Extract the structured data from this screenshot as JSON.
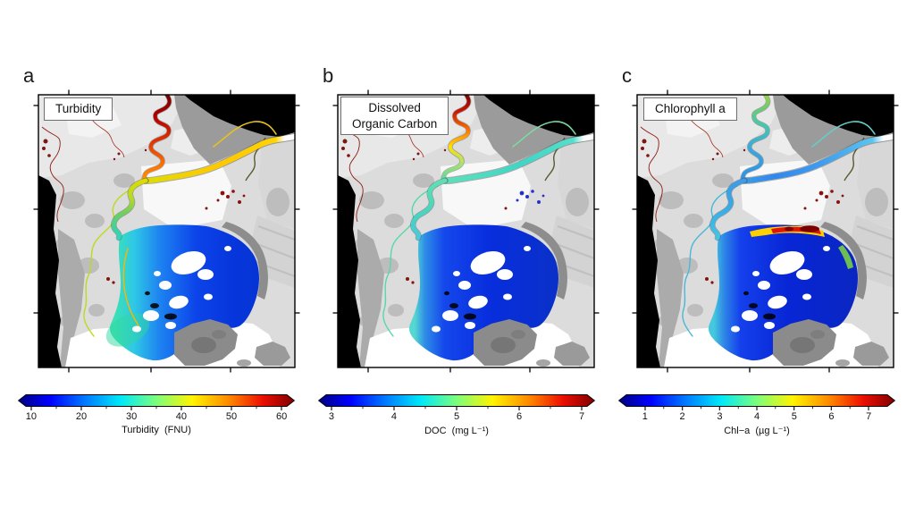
{
  "panels": [
    {
      "letter": "a",
      "title_lines": [
        "Turbidity"
      ],
      "colors": {
        "river_upper": [
          [
            "0",
            "#6e0000"
          ],
          [
            "0.28",
            "#b00000"
          ],
          [
            "0.55",
            "#e03000"
          ],
          [
            "0.8",
            "#ff6a00"
          ],
          [
            "1",
            "#ff9400"
          ]
        ],
        "river_east": [
          [
            "0",
            "#ffffff"
          ],
          [
            "0.09",
            "#ffffff"
          ],
          [
            "0.15",
            "#ffd400"
          ],
          [
            "0.5",
            "#ffc800"
          ],
          [
            "0.8",
            "#eed400"
          ],
          [
            "1",
            "#dcdc00"
          ]
        ],
        "river_lower": [
          [
            "0",
            "#dcdc00"
          ],
          [
            "0.3",
            "#b4da28"
          ],
          [
            "0.55",
            "#6ed05a"
          ],
          [
            "0.8",
            "#3ed29e"
          ],
          [
            "1",
            "#30d4c4"
          ]
        ],
        "bay": [
          [
            "0",
            "#3ce0b4"
          ],
          [
            "0.13",
            "#2ec8e6"
          ],
          [
            "0.3",
            "#1e84f0"
          ],
          [
            "0.55",
            "#0c44ea"
          ],
          [
            "0.8",
            "#0636dc"
          ],
          [
            "1",
            "#0534d4"
          ]
        ],
        "branch": "#c0d820",
        "east_thin": "#e8c020",
        "ponds": "#8b1010",
        "shore_rim": "#ffb400",
        "sw_fan": "#2fd8a0"
      }
    },
    {
      "letter": "b",
      "title_lines": [
        "Dissolved",
        "Organic Carbon"
      ],
      "colors": {
        "river_upper": [
          [
            "0",
            "#700000"
          ],
          [
            "0.22",
            "#c81400"
          ],
          [
            "0.45",
            "#ff7a00"
          ],
          [
            "0.62",
            "#ffe000"
          ],
          [
            "0.8",
            "#b0e465"
          ],
          [
            "1",
            "#52d8a8"
          ]
        ],
        "river_east": [
          [
            "0",
            "#ffffff"
          ],
          [
            "0.09",
            "#ffffff"
          ],
          [
            "0.16",
            "#52e0cc"
          ],
          [
            "0.5",
            "#3ed6c6"
          ],
          [
            "0.8",
            "#52dcc0"
          ],
          [
            "1",
            "#5ee0b6"
          ]
        ],
        "river_lower": [
          [
            "0",
            "#5ee0b6"
          ],
          [
            "0.4",
            "#4cd8b8"
          ],
          [
            "0.7",
            "#46d0cc"
          ],
          [
            "1",
            "#4ec8dc"
          ]
        ],
        "bay": [
          [
            "0",
            "#55d8d2"
          ],
          [
            "0.07",
            "#2e8ee6"
          ],
          [
            "0.2",
            "#1548ec"
          ],
          [
            "0.5",
            "#082ede"
          ],
          [
            "1",
            "#0a30c8"
          ]
        ],
        "branch": "#58d8a8",
        "east_thin": "#7cd8a0",
        "ponds": "#2830cc"
      }
    },
    {
      "letter": "c",
      "title_lines": [
        "Chlorophyll a"
      ],
      "colors": {
        "river_upper": [
          [
            "0",
            "#a2d833"
          ],
          [
            "0.18",
            "#6ecc6e"
          ],
          [
            "0.4",
            "#40c8b4"
          ],
          [
            "0.65",
            "#38a8e0"
          ],
          [
            "1",
            "#3090e4"
          ]
        ],
        "river_east": [
          [
            "0",
            "#ffffff"
          ],
          [
            "0.09",
            "#ffffff"
          ],
          [
            "0.16",
            "#5ac4f0"
          ],
          [
            "0.5",
            "#3e9cf0"
          ],
          [
            "0.8",
            "#3088ee"
          ],
          [
            "1",
            "#3c9ce8"
          ]
        ],
        "river_lower": [
          [
            "0",
            "#3c9ce8"
          ],
          [
            "0.4",
            "#38a8e6"
          ],
          [
            "0.7",
            "#3eb6e6"
          ],
          [
            "1",
            "#46c6e4"
          ]
        ],
        "bay": [
          [
            "0",
            "#44c8de"
          ],
          [
            "0.07",
            "#2e86e6"
          ],
          [
            "0.18",
            "#1440ec"
          ],
          [
            "0.5",
            "#0826d6"
          ],
          [
            "1",
            "#0a26c0"
          ]
        ],
        "branch": "#48b8d8",
        "east_thin": "#66ccc8",
        "ponds": "#8b1010",
        "bloom_band": "#ffd000",
        "bloom_red": "#e01500",
        "bloom_core": "#7a0000",
        "edge_green": "#7fd840"
      }
    }
  ],
  "colorbars": [
    {
      "ticks": [
        "10",
        "20",
        "30",
        "40",
        "50",
        "60"
      ],
      "unit_label": "Turbidity  (FNU)",
      "range": [
        10,
        60
      ]
    },
    {
      "ticks": [
        "3",
        "4",
        "5",
        "6",
        "7"
      ],
      "unit_label": "DOC  (mg L⁻¹)",
      "range": [
        3,
        7
      ]
    },
    {
      "ticks": [
        "1",
        "2",
        "3",
        "4",
        "5",
        "6",
        "7"
      ],
      "unit_label": "Chl−a  (µg L⁻¹)",
      "range": [
        1,
        7
      ]
    }
  ],
  "colormap": {
    "name": "jet",
    "stops": [
      [
        "0",
        "#00007f"
      ],
      [
        "0.115",
        "#0000fe"
      ],
      [
        "0.24",
        "#0078ff"
      ],
      [
        "0.37",
        "#00e8f8"
      ],
      [
        "0.5",
        "#7cff7c"
      ],
      [
        "0.63",
        "#fff400"
      ],
      [
        "0.76",
        "#ff8c00"
      ],
      [
        "0.885",
        "#ec0e00"
      ],
      [
        "1",
        "#7f0000"
      ]
    ]
  }
}
